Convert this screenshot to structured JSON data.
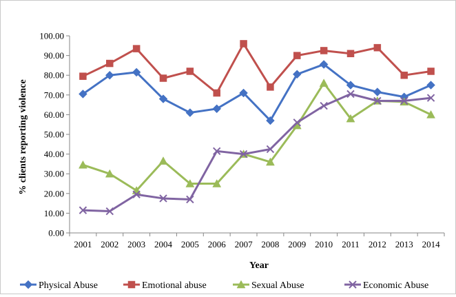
{
  "chart_data": {
    "type": "line",
    "title": "",
    "xlabel": "Year",
    "ylabel": "% clients reporting violence",
    "ylim": [
      0,
      100
    ],
    "yticks": [
      "0.00",
      "10.00",
      "20.00",
      "30.00",
      "40.00",
      "50.00",
      "60.00",
      "70.00",
      "80.00",
      "90.00",
      "100.00"
    ],
    "categories": [
      "2001",
      "2002",
      "2003",
      "2004",
      "2005",
      "2006",
      "2007",
      "2008",
      "2009",
      "2010",
      "2011",
      "2012",
      "2013",
      "2014"
    ],
    "grid": false,
    "legend_position": "bottom",
    "series": [
      {
        "name": "Physical Abuse",
        "color": "#4472C4",
        "marker": "diamond",
        "values": [
          70.5,
          80.0,
          81.5,
          68.0,
          61.0,
          63.0,
          71.0,
          57.0,
          80.5,
          85.5,
          75.0,
          71.5,
          69.0,
          75.0
        ]
      },
      {
        "name": "Emotional abuse",
        "color": "#C0504D",
        "marker": "square",
        "values": [
          79.5,
          86.0,
          93.5,
          78.5,
          82.0,
          71.0,
          96.0,
          74.0,
          90.0,
          92.5,
          91.0,
          94.0,
          80.0,
          82.0
        ]
      },
      {
        "name": "Sexual Abuse",
        "color": "#9BBB59",
        "marker": "triangle",
        "values": [
          34.5,
          30.0,
          21.5,
          36.5,
          25.0,
          25.0,
          40.0,
          36.0,
          54.5,
          76.0,
          58.0,
          67.0,
          66.5,
          60.0
        ]
      },
      {
        "name": "Economic Abuse",
        "color": "#8064A2",
        "marker": "x",
        "values": [
          11.5,
          11.0,
          19.5,
          17.5,
          17.0,
          41.5,
          40.0,
          42.5,
          56.0,
          64.5,
          70.5,
          67.0,
          67.0,
          68.5
        ]
      }
    ]
  }
}
